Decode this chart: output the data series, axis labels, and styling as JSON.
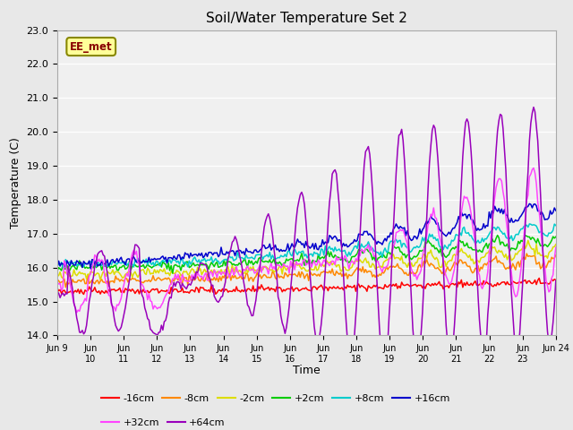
{
  "title": "Soil/Water Temperature Set 2",
  "xlabel": "Time",
  "ylabel": "Temperature (C)",
  "ylim": [
    14.0,
    23.0
  ],
  "yticks": [
    14.0,
    15.0,
    16.0,
    17.0,
    18.0,
    19.0,
    20.0,
    21.0,
    22.0,
    23.0
  ],
  "n_days": 15,
  "start_day": 9,
  "series": [
    {
      "label": "-16cm",
      "color": "#ff0000"
    },
    {
      "label": "-8cm",
      "color": "#ff8800"
    },
    {
      "label": "-2cm",
      "color": "#dddd00"
    },
    {
      "label": "+2cm",
      "color": "#00cc00"
    },
    {
      "label": "+8cm",
      "color": "#00cccc"
    },
    {
      "label": "+16cm",
      "color": "#0000cc"
    },
    {
      "label": "+32cm",
      "color": "#ff44ff"
    },
    {
      "label": "+64cm",
      "color": "#9900bb"
    }
  ],
  "watermark": "EE_met",
  "bg_color": "#e8e8e8",
  "plot_bg": "#f0f0f0",
  "grid_color": "#ffffff"
}
